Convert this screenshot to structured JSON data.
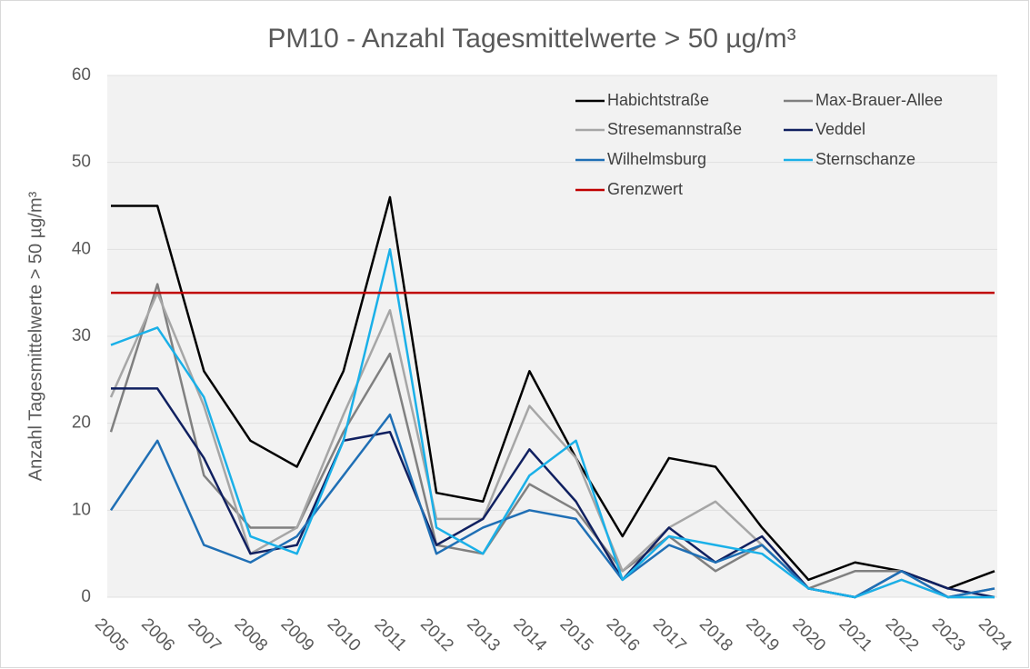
{
  "chart_data": {
    "type": "line",
    "title": "PM10 - Anzahl Tagesmittelwerte > 50 µg/m³",
    "y_label": "Anzahl Tagesmittelwerte > 50 µg/m³",
    "categories": [
      "2005",
      "2006",
      "2007",
      "2008",
      "2009",
      "2010",
      "2011",
      "2012",
      "2013",
      "2014",
      "2015",
      "2016",
      "2017",
      "2018",
      "2019",
      "2020",
      "2021",
      "2022",
      "2023",
      "2024"
    ],
    "series": [
      {
        "name": "Habichtstraße",
        "color": "#000000",
        "values": [
          45,
          45,
          26,
          18,
          15,
          26,
          46,
          12,
          11,
          26,
          16,
          7,
          16,
          15,
          8,
          2,
          4,
          3,
          1,
          3
        ]
      },
      {
        "name": "Max-Brauer-Allee",
        "color": "#808080",
        "values": [
          19,
          36,
          14,
          8,
          8,
          19,
          28,
          6,
          5,
          13,
          10,
          3,
          7,
          3,
          6,
          1,
          3,
          3,
          0,
          1
        ]
      },
      {
        "name": "Stresemannstraße",
        "color": "#a6a6a6",
        "values": [
          23,
          35,
          22,
          5,
          8,
          21,
          33,
          9,
          9,
          22,
          16,
          3,
          8,
          11,
          6,
          1,
          0,
          2,
          0,
          0
        ]
      },
      {
        "name": "Veddel",
        "color": "#102060",
        "values": [
          24,
          24,
          16,
          5,
          6,
          18,
          19,
          6,
          9,
          17,
          11,
          2,
          8,
          4,
          7,
          1,
          0,
          3,
          1,
          0
        ]
      },
      {
        "name": "Wilhelmsburg",
        "color": "#1f6fb5",
        "values": [
          10,
          18,
          6,
          4,
          7,
          14,
          21,
          5,
          8,
          10,
          9,
          2,
          6,
          4,
          6,
          1,
          0,
          3,
          0,
          1
        ]
      },
      {
        "name": "Sternschanze",
        "color": "#1ab0e8",
        "values": [
          29,
          31,
          23,
          7,
          5,
          18,
          40,
          8,
          5,
          14,
          18,
          2,
          7,
          6,
          5,
          1,
          0,
          2,
          0,
          0
        ]
      },
      {
        "name": "Grenzwert",
        "color": "#c00000",
        "values": [
          35,
          35,
          35,
          35,
          35,
          35,
          35,
          35,
          35,
          35,
          35,
          35,
          35,
          35,
          35,
          35,
          35,
          35,
          35,
          35
        ]
      }
    ],
    "ylim": [
      0,
      60
    ],
    "yticks": [
      0,
      10,
      20,
      30,
      40,
      50,
      60
    ],
    "grid": true
  }
}
